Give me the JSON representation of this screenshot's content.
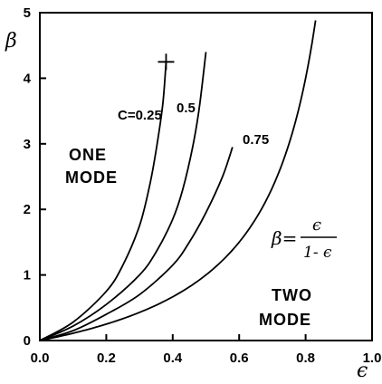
{
  "chart_data": {
    "type": "line",
    "xlabel": "ϵ",
    "ylabel": "β",
    "xlim": [
      0,
      1
    ],
    "ylim": [
      0,
      5
    ],
    "x_ticks": [
      "0.0",
      "0.2",
      "0.4",
      "0.6",
      "0.8",
      "1.0"
    ],
    "y_ticks": [
      "0",
      "1",
      "2",
      "3",
      "4",
      "5"
    ],
    "grid": false,
    "series": [
      {
        "label": "C=0.25",
        "x": [
          0.0,
          0.1,
          0.2,
          0.25,
          0.3,
          0.33,
          0.35,
          0.37,
          0.38
        ],
        "y": [
          0.0,
          0.28,
          0.75,
          1.15,
          1.75,
          2.35,
          2.9,
          3.6,
          4.25
        ]
      },
      {
        "label": "0.5",
        "x": [
          0.0,
          0.1,
          0.2,
          0.3,
          0.35,
          0.4,
          0.43,
          0.46,
          0.48,
          0.5
        ],
        "y": [
          0.0,
          0.22,
          0.55,
          1.0,
          1.35,
          1.85,
          2.3,
          2.95,
          3.55,
          4.4
        ]
      },
      {
        "label": "0.75",
        "x": [
          0.0,
          0.1,
          0.2,
          0.3,
          0.4,
          0.45,
          0.5,
          0.55,
          0.58
        ],
        "y": [
          0.0,
          0.15,
          0.4,
          0.7,
          1.15,
          1.5,
          1.95,
          2.5,
          2.95
        ]
      },
      {
        "label": "β= ϵ / 1-ϵ",
        "formula": true
      }
    ],
    "marker": {
      "x": 0.38,
      "y": 4.25,
      "symbol": "+"
    },
    "annotations": {
      "one_mode_line1": "ONE",
      "one_mode_line2": "MODE",
      "two_mode_line1": "TWO",
      "two_mode_line2": "MODE",
      "formula_lhs": "β=",
      "formula_num": "ϵ",
      "formula_den": "1- ϵ"
    }
  }
}
